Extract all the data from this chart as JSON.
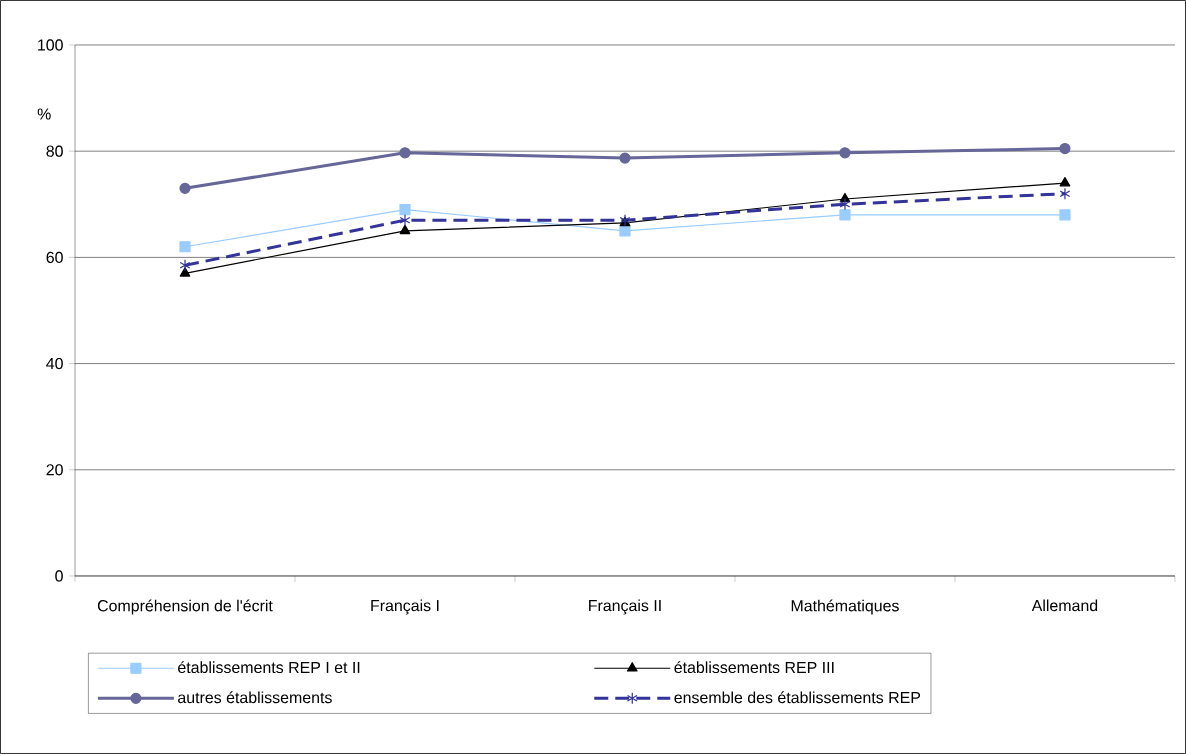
{
  "chart_data": {
    "type": "line",
    "ylabel": "%",
    "categories": [
      "Compréhension de l'écrit",
      "Français I",
      "Français II",
      "Mathématiques",
      "Allemand"
    ],
    "series": [
      {
        "name": "établissements REP I et II",
        "color": "#99ccff",
        "marker": "square",
        "line_style": "solid",
        "values": [
          62,
          69,
          65,
          68,
          68
        ]
      },
      {
        "name": "établissements REP III",
        "color": "#000000",
        "marker": "triangle",
        "line_style": "solid",
        "values": [
          57,
          65,
          66.5,
          71,
          74
        ]
      },
      {
        "name": "autres établissements",
        "color": "#666699",
        "marker": "circle",
        "line_style": "solid",
        "values": [
          73,
          79.7,
          78.7,
          79.7,
          80.5
        ]
      },
      {
        "name": "ensemble des établissements REP",
        "color": "#333399",
        "marker": "cross",
        "line_style": "dashed",
        "values": [
          58.5,
          67,
          67,
          70,
          72
        ]
      }
    ],
    "ylim": [
      0,
      100
    ],
    "yticks": [
      0,
      20,
      40,
      60,
      80,
      100
    ],
    "grid": "y",
    "legend": "bottom"
  }
}
